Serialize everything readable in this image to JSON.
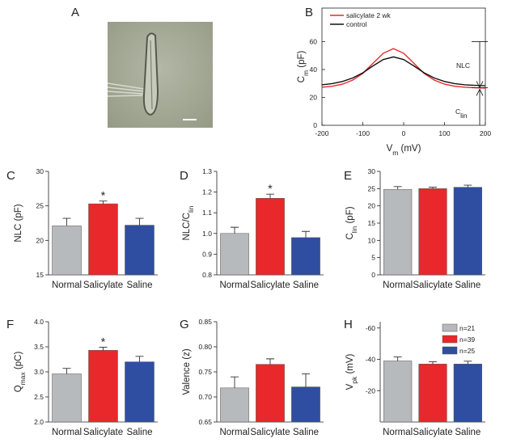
{
  "image_panel": {
    "label": "A"
  },
  "chart_data": [
    {
      "type": "line",
      "panel": "B",
      "xlabel": {
        "text": "V",
        "sub": "m",
        "rest": " (mV)"
      },
      "ylabel": {
        "text": "C",
        "sub": "m",
        "rest": " (pF)"
      },
      "x": [
        -200,
        -175,
        -150,
        -125,
        -100,
        -75,
        -50,
        -25,
        0,
        25,
        50,
        75,
        100,
        125,
        150,
        175,
        200
      ],
      "series": [
        {
          "name": "salicylate 2 wk",
          "color": "#e8282a",
          "values": [
            27.3,
            28.0,
            29.5,
            32.4,
            37.2,
            44.5,
            51.6,
            55,
            51.6,
            44.5,
            37.2,
            32.4,
            29.5,
            28.0,
            27.3,
            26.9,
            26.7
          ]
        },
        {
          "name": "control",
          "color": "#111111",
          "values": [
            29.0,
            29.9,
            31.4,
            33.9,
            37.6,
            42.6,
            47.1,
            49,
            47.1,
            42.6,
            37.6,
            33.9,
            31.4,
            29.9,
            29.0,
            28.6,
            28.3
          ]
        }
      ],
      "xlim": [
        -200,
        200
      ],
      "xticks": [
        -200,
        -100,
        0,
        100,
        200
      ],
      "ylim": [
        0,
        84
      ],
      "yticks": [
        0,
        20,
        40,
        60
      ],
      "annotations": [
        {
          "text": "NLC"
        },
        {
          "text": "C",
          "sub": "lin"
        }
      ]
    },
    {
      "type": "bar",
      "panel": "C",
      "ylabel": {
        "text": "NLC (pF)"
      },
      "categories": [
        "Normal",
        "Salicylate",
        "Saline"
      ],
      "values": [
        22.1,
        25.3,
        22.2
      ],
      "errors": [
        1.1,
        0.4,
        1.0
      ],
      "colors": [
        "#b7babd",
        "#e8282a",
        "#2f4ea1"
      ],
      "significance": [
        null,
        "*",
        null
      ],
      "ylim": [
        15,
        30
      ],
      "yticks": [
        15,
        20,
        25,
        30
      ]
    },
    {
      "type": "bar",
      "panel": "D",
      "ylabel": {
        "text": "NLC/C",
        "sub": "lin"
      },
      "categories": [
        "Normal",
        "Salicylate",
        "Saline"
      ],
      "values": [
        1.0,
        1.17,
        0.98
      ],
      "errors": [
        0.03,
        0.02,
        0.03
      ],
      "colors": [
        "#b7babd",
        "#e8282a",
        "#2f4ea1"
      ],
      "significance": [
        null,
        "*",
        null
      ],
      "ylim": [
        0.8,
        1.3
      ],
      "yticks": [
        0.8,
        0.9,
        {
          "value": 1,
          "label": "1.0"
        },
        1.1,
        1.2,
        1.3
      ]
    },
    {
      "type": "bar",
      "panel": "E",
      "ylabel": {
        "text": "C",
        "sub": "lin",
        "rest": " (pF)"
      },
      "categories": [
        "Normal",
        "Salicylate",
        "Saline"
      ],
      "values": [
        24.8,
        25.0,
        25.4
      ],
      "errors": [
        0.8,
        0.4,
        0.6
      ],
      "colors": [
        "#b7babd",
        "#e8282a",
        "#2f4ea1"
      ],
      "ylim": [
        0,
        30
      ],
      "yticks": [
        0,
        5,
        10,
        15,
        20,
        25,
        30
      ]
    },
    {
      "type": "bar",
      "panel": "F",
      "ylabel": {
        "text": "Q",
        "sub": "max",
        "rest": " (pC)"
      },
      "categories": [
        "Normal",
        "Salicylate",
        "Saline"
      ],
      "values": [
        2.96,
        3.43,
        3.2
      ],
      "errors": [
        0.11,
        0.06,
        0.11
      ],
      "colors": [
        "#b7babd",
        "#e8282a",
        "#2f4ea1"
      ],
      "significance": [
        null,
        "*",
        null
      ],
      "ylim": [
        2,
        4
      ],
      "yticks": [
        {
          "value": 2,
          "label": "2.0"
        },
        2.5,
        {
          "value": 3,
          "label": "3.0"
        },
        3.5,
        {
          "value": 4,
          "label": "4.0"
        }
      ]
    },
    {
      "type": "bar",
      "panel": "G",
      "ylabel": {
        "text": "Valence (z)"
      },
      "categories": [
        "Normal",
        "Salicylate",
        "Saline"
      ],
      "values": [
        0.718,
        0.765,
        0.72
      ],
      "errors": [
        0.022,
        0.011,
        0.026
      ],
      "colors": [
        "#b7babd",
        "#e8282a",
        "#2f4ea1"
      ],
      "ylim": [
        0.65,
        0.85
      ],
      "yticks": [
        0.65,
        {
          "value": 0.7,
          "label": "0.70"
        },
        0.75,
        {
          "value": 0.8,
          "label": "0.80"
        },
        0.85
      ]
    },
    {
      "type": "bar",
      "panel": "H",
      "ylabel": {
        "text": "V",
        "sub": "pk",
        "rest": " (mV)"
      },
      "categories": [
        "Normal",
        "Salicylate",
        "Saline"
      ],
      "values": [
        -39,
        -37,
        -37
      ],
      "errors": [
        2.5,
        1.5,
        1.8
      ],
      "colors": [
        "#b7babd",
        "#e8282a",
        "#2f4ea1"
      ],
      "ylim": [
        0,
        -64
      ],
      "yticks": [
        -20,
        -40,
        -60
      ],
      "legend": [
        "n=21",
        "n=39",
        "n=25"
      ]
    }
  ]
}
